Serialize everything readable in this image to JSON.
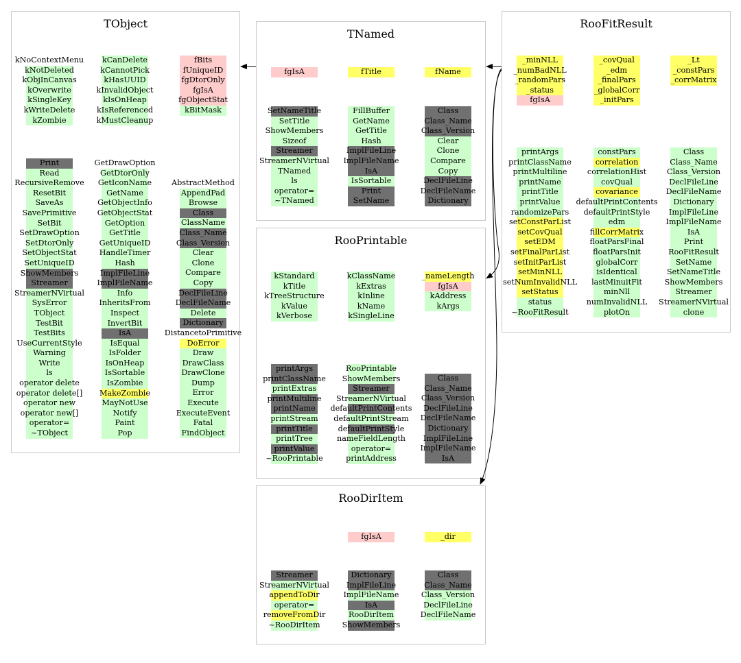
{
  "classes": {
    "tobject": {
      "title": "TObject",
      "groups": {
        "enums": [
          [
            [
              "kNoContextMenu",
              "w"
            ],
            [
              "kNotDeleted",
              "g"
            ],
            [
              "kObjInCanvas",
              "g"
            ],
            [
              "kOverwrite",
              "g"
            ],
            [
              "kSingleKey",
              "g"
            ],
            [
              "kWriteDelete",
              "g"
            ],
            [
              "kZombie",
              "g"
            ]
          ],
          [
            [
              "kCanDelete",
              "g"
            ],
            [
              "kCannotPick",
              "g"
            ],
            [
              "kHasUUID",
              "g"
            ],
            [
              "kInvalidObject",
              "g"
            ],
            [
              "kIsOnHeap",
              "g"
            ],
            [
              "kIsReferenced",
              "g"
            ],
            [
              "kMustCleanup",
              "g"
            ]
          ],
          [
            [
              "fBits",
              "p"
            ],
            [
              "fUniqueID",
              "p"
            ],
            [
              "fgDtorOnly",
              "p"
            ],
            [
              "fgIsA",
              "p"
            ],
            [
              "fgObjectStat",
              "p"
            ],
            [
              "kBitMask",
              "g"
            ]
          ]
        ],
        "methods": [
          [
            [
              "Print",
              "d"
            ],
            [
              "Read",
              "g"
            ],
            [
              "RecursiveRemove",
              "g"
            ],
            [
              "ResetBit",
              "g"
            ],
            [
              "SaveAs",
              "g"
            ],
            [
              "SavePrimitive",
              "g"
            ],
            [
              "SetBit",
              "g"
            ],
            [
              "SetDrawOption",
              "g"
            ],
            [
              "SetDtorOnly",
              "g"
            ],
            [
              "SetObjectStat",
              "g"
            ],
            [
              "SetUniqueID",
              "g"
            ],
            [
              "ShowMembers",
              "d"
            ],
            [
              "Streamer",
              "d"
            ],
            [
              "StreamerNVirtual",
              "g"
            ],
            [
              "SysError",
              "g"
            ],
            [
              "TObject",
              "g"
            ],
            [
              "TestBit",
              "g"
            ],
            [
              "TestBits",
              "g"
            ],
            [
              "UseCurrentStyle",
              "g"
            ],
            [
              "Warning",
              "g"
            ],
            [
              "Write",
              "g"
            ],
            [
              "ls",
              "g"
            ],
            [
              "operator delete",
              "g"
            ],
            [
              "operator delete[]",
              "g"
            ],
            [
              "operator new",
              "g"
            ],
            [
              "operator new[]",
              "g"
            ],
            [
              "operator=",
              "g"
            ],
            [
              "~TObject",
              "g"
            ]
          ],
          [
            [
              "GetDrawOption",
              "w"
            ],
            [
              "GetDtorOnly",
              "g"
            ],
            [
              "GetIconName",
              "g"
            ],
            [
              "GetName",
              "g"
            ],
            [
              "GetObjectInfo",
              "g"
            ],
            [
              "GetObjectStat",
              "g"
            ],
            [
              "GetOption",
              "g"
            ],
            [
              "GetTitle",
              "g"
            ],
            [
              "GetUniqueID",
              "g"
            ],
            [
              "HandleTimer",
              "g"
            ],
            [
              "Hash",
              "g"
            ],
            [
              "ImplFileLine",
              "d"
            ],
            [
              "ImplFileName",
              "d"
            ],
            [
              "Info",
              "g"
            ],
            [
              "InheritsFrom",
              "g"
            ],
            [
              "Inspect",
              "g"
            ],
            [
              "InvertBit",
              "g"
            ],
            [
              "IsA",
              "d"
            ],
            [
              "IsEqual",
              "g"
            ],
            [
              "IsFolder",
              "g"
            ],
            [
              "IsOnHeap",
              "g"
            ],
            [
              "IsSortable",
              "g"
            ],
            [
              "IsZombie",
              "g"
            ],
            [
              "MakeZombie",
              "y"
            ],
            [
              "MayNotUse",
              "g"
            ],
            [
              "Notify",
              "g"
            ],
            [
              "Paint",
              "g"
            ],
            [
              "Pop",
              "g"
            ]
          ],
          [
            [
              "AbstractMethod",
              "w"
            ],
            [
              "AppendPad",
              "g"
            ],
            [
              "Browse",
              "g"
            ],
            [
              "Class",
              "d"
            ],
            [
              "ClassName",
              "g"
            ],
            [
              "Class_Name",
              "d"
            ],
            [
              "Class_Version",
              "d"
            ],
            [
              "Clear",
              "g"
            ],
            [
              "Clone",
              "g"
            ],
            [
              "Compare",
              "g"
            ],
            [
              "Copy",
              "g"
            ],
            [
              "DeclFileLine",
              "d"
            ],
            [
              "DeclFileName",
              "d"
            ],
            [
              "Delete",
              "g"
            ],
            [
              "Dictionary",
              "d"
            ],
            [
              "DistancetoPrimitive",
              "w"
            ],
            [
              "DoError",
              "y"
            ],
            [
              "Draw",
              "g"
            ],
            [
              "DrawClass",
              "g"
            ],
            [
              "DrawClone",
              "g"
            ],
            [
              "Dump",
              "g"
            ],
            [
              "Error",
              "g"
            ],
            [
              "Execute",
              "g"
            ],
            [
              "ExecuteEvent",
              "g"
            ],
            [
              "Fatal",
              "g"
            ],
            [
              "FindObject",
              "g"
            ]
          ]
        ]
      }
    },
    "tnamed": {
      "title": "TNamed",
      "fields": [
        [
          [
            "fgIsA",
            "p"
          ]
        ],
        [
          [
            "fTitle",
            "y"
          ]
        ],
        [
          [
            "fName",
            "y"
          ]
        ]
      ],
      "methods": [
        [
          [
            "SetNameTitle",
            "d"
          ],
          [
            "SetTitle",
            "g"
          ],
          [
            "ShowMembers",
            "g"
          ],
          [
            "Sizeof",
            "g"
          ],
          [
            "Streamer",
            "d"
          ],
          [
            "StreamerNVirtual",
            "g"
          ],
          [
            "TNamed",
            "g"
          ],
          [
            "ls",
            "g"
          ],
          [
            "operator=",
            "g"
          ],
          [
            "~TNamed",
            "g"
          ]
        ],
        [
          [
            "FillBuffer",
            "g"
          ],
          [
            "GetName",
            "g"
          ],
          [
            "GetTitle",
            "g"
          ],
          [
            "Hash",
            "g"
          ],
          [
            "ImplFileLine",
            "d"
          ],
          [
            "ImplFileName",
            "d"
          ],
          [
            "IsA",
            "d"
          ],
          [
            "IsSortable",
            "g"
          ],
          [
            "Print",
            "d"
          ],
          [
            "SetName",
            "d"
          ]
        ],
        [
          [
            "Class",
            "d"
          ],
          [
            "Class_Name",
            "d"
          ],
          [
            "Class_Version",
            "d"
          ],
          [
            "Clear",
            "g"
          ],
          [
            "Clone",
            "g"
          ],
          [
            "Compare",
            "g"
          ],
          [
            "Copy",
            "g"
          ],
          [
            "DeclFileLine",
            "d"
          ],
          [
            "DeclFileName",
            "d"
          ],
          [
            "Dictionary",
            "d"
          ]
        ]
      ]
    },
    "roofitresult": {
      "title": "RooFitResult",
      "fields": [
        [
          [
            "_minNLL",
            "y"
          ],
          [
            "_numBadNLL",
            "y"
          ],
          [
            "_randomPars",
            "y"
          ],
          [
            "_status",
            "y"
          ],
          [
            "fgIsA",
            "p"
          ]
        ],
        [
          [
            "_covQual",
            "y"
          ],
          [
            "_edm",
            "y"
          ],
          [
            "_finalPars",
            "y"
          ],
          [
            "_globalCorr",
            "y"
          ],
          [
            "_initPars",
            "y"
          ]
        ],
        [
          [
            "_Lt",
            "y"
          ],
          [
            "_constPars",
            "y"
          ],
          [
            "_corrMatrix",
            "y"
          ]
        ]
      ],
      "methods": [
        [
          [
            "printArgs",
            "g"
          ],
          [
            "printClassName",
            "g"
          ],
          [
            "printMultiline",
            "g"
          ],
          [
            "printName",
            "g"
          ],
          [
            "printTitle",
            "g"
          ],
          [
            "printValue",
            "g"
          ],
          [
            "randomizePars",
            "g"
          ],
          [
            "setConstParList",
            "y"
          ],
          [
            "setCovQual",
            "y"
          ],
          [
            "setEDM",
            "y"
          ],
          [
            "setFinalParList",
            "y"
          ],
          [
            "setInitParList",
            "y"
          ],
          [
            "setMinNLL",
            "y"
          ],
          [
            "setNumInvalidNLL",
            "y"
          ],
          [
            "setStatus",
            "y"
          ],
          [
            "status",
            "g"
          ],
          [
            "~RooFitResult",
            "g"
          ]
        ],
        [
          [
            "constPars",
            "g"
          ],
          [
            "correlation",
            "y"
          ],
          [
            "correlationHist",
            "g"
          ],
          [
            "covQual",
            "g"
          ],
          [
            "covariance",
            "y"
          ],
          [
            "defaultPrintContents",
            "g"
          ],
          [
            "defaultPrintStyle",
            "g"
          ],
          [
            "edm",
            "g"
          ],
          [
            "fillCorrMatrix",
            "y"
          ],
          [
            "floatParsFinal",
            "g"
          ],
          [
            "floatParsInit",
            "g"
          ],
          [
            "globalCorr",
            "g"
          ],
          [
            "isIdentical",
            "g"
          ],
          [
            "lastMinuitFit",
            "g"
          ],
          [
            "minNll",
            "g"
          ],
          [
            "numInvalidNLL",
            "g"
          ],
          [
            "plotOn",
            "g"
          ]
        ],
        [
          [
            "Class",
            "g"
          ],
          [
            "Class_Name",
            "g"
          ],
          [
            "Class_Version",
            "g"
          ],
          [
            "DeclFileLine",
            "g"
          ],
          [
            "DeclFileName",
            "g"
          ],
          [
            "Dictionary",
            "g"
          ],
          [
            "ImplFileLine",
            "g"
          ],
          [
            "ImplFileName",
            "g"
          ],
          [
            "IsA",
            "g"
          ],
          [
            "Print",
            "g"
          ],
          [
            "RooFitResult",
            "g"
          ],
          [
            "SetName",
            "g"
          ],
          [
            "SetNameTitle",
            "g"
          ],
          [
            "ShowMembers",
            "g"
          ],
          [
            "Streamer",
            "g"
          ],
          [
            "StreamerNVirtual",
            "g"
          ],
          [
            "clone",
            "g"
          ]
        ]
      ]
    },
    "rooprintable": {
      "title": "RooPrintable",
      "fields": [
        [
          [
            "kStandard",
            "g"
          ],
          [
            "kTitle",
            "g"
          ],
          [
            "kTreeStructure",
            "g"
          ],
          [
            "kValue",
            "g"
          ],
          [
            "kVerbose",
            "g"
          ]
        ],
        [
          [
            "kClassName",
            "g"
          ],
          [
            "kExtras",
            "g"
          ],
          [
            "kInline",
            "g"
          ],
          [
            "kName",
            "g"
          ],
          [
            "kSingleLine",
            "g"
          ]
        ],
        [
          [
            "_nameLength",
            "y"
          ],
          [
            "fgIsA",
            "p"
          ],
          [
            "kAddress",
            "g"
          ],
          [
            "kArgs",
            "g"
          ]
        ]
      ],
      "methods": [
        [
          [
            "printArgs",
            "d"
          ],
          [
            "printClassName",
            "d"
          ],
          [
            "printExtras",
            "g"
          ],
          [
            "printMultiline",
            "d"
          ],
          [
            "printName",
            "d"
          ],
          [
            "printStream",
            "g"
          ],
          [
            "printTitle",
            "d"
          ],
          [
            "printTree",
            "g"
          ],
          [
            "printValue",
            "d"
          ],
          [
            "~RooPrintable",
            "g"
          ]
        ],
        [
          [
            "RooPrintable",
            "g"
          ],
          [
            "ShowMembers",
            "g"
          ],
          [
            "Streamer",
            "d"
          ],
          [
            "StreamerNVirtual",
            "g"
          ],
          [
            "defaultPrintContents",
            "d"
          ],
          [
            "defaultPrintStream",
            "g"
          ],
          [
            "defaultPrintStyle",
            "d"
          ],
          [
            "nameFieldLength",
            "g"
          ],
          [
            "operator=",
            "g"
          ],
          [
            "printAddress",
            "g"
          ]
        ],
        [
          [
            "Class",
            "d"
          ],
          [
            "Class_Name",
            "d"
          ],
          [
            "Class_Version",
            "d"
          ],
          [
            "DeclFileLine",
            "d"
          ],
          [
            "DeclFileName",
            "d"
          ],
          [
            "Dictionary",
            "d"
          ],
          [
            "ImplFileLine",
            "d"
          ],
          [
            "ImplFileName",
            "d"
          ],
          [
            "IsA",
            "d"
          ]
        ]
      ]
    },
    "roodiritem": {
      "title": "RooDirItem",
      "fields": [
        [],
        [
          [
            "fgIsA",
            "p"
          ]
        ],
        [
          [
            "_dir",
            "y"
          ]
        ]
      ],
      "methods": [
        [
          [
            "Streamer",
            "d"
          ],
          [
            "StreamerNVirtual",
            "g"
          ],
          [
            "appendToDir",
            "y"
          ],
          [
            "operator=",
            "g"
          ],
          [
            "removeFromDir",
            "y"
          ],
          [
            "~RooDirItem",
            "g"
          ]
        ],
        [
          [
            "Dictionary",
            "d"
          ],
          [
            "ImplFileLine",
            "d"
          ],
          [
            "ImplFileName",
            "g"
          ],
          [
            "IsA",
            "d"
          ],
          [
            "RooDirItem",
            "g"
          ],
          [
            "ShowMembers",
            "d"
          ]
        ],
        [
          [
            "Class",
            "d"
          ],
          [
            "Class_Name",
            "d"
          ],
          [
            "Class_Version",
            "g"
          ],
          [
            "DeclFileLine",
            "g"
          ],
          [
            "DeclFileName",
            "g"
          ]
        ]
      ]
    }
  }
}
